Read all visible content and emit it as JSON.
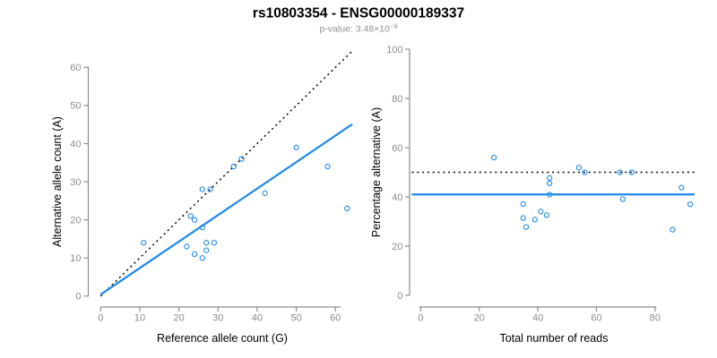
{
  "header": {
    "title": "rs10803354 - ENSG00000189337",
    "subtitle_base": "p-value: 3.48×10",
    "subtitle_exponent": "−9"
  },
  "colors": {
    "background": "#ffffff",
    "accent_blue": "#1e88e8",
    "dotted_line_black": "#000000",
    "axis_gray": "#8c8c8c",
    "tick_label_gray": "#8c8c8c",
    "axis_title_black": "#000000",
    "title_black": "#000000",
    "subtitle_gray": "#8f8f8f"
  },
  "chart_data": [
    {
      "type": "scatter",
      "name": "allele-count-scatter",
      "xlabel": "Reference allele count (G)",
      "ylabel": "Alternative allele count (A)",
      "xticks": [
        0,
        10,
        20,
        30,
        40,
        50,
        60
      ],
      "yticks": [
        0,
        10,
        20,
        30,
        40,
        50,
        60
      ],
      "xlim": [
        0,
        65
      ],
      "ylim": [
        0,
        65
      ],
      "grid": false,
      "legend": null,
      "marker": "open-circle",
      "points": [
        [
          11,
          14
        ],
        [
          22,
          13
        ],
        [
          24,
          11
        ],
        [
          26,
          10
        ],
        [
          27,
          12
        ],
        [
          27,
          14
        ],
        [
          29,
          14
        ],
        [
          23,
          21
        ],
        [
          24,
          20
        ],
        [
          26,
          18
        ],
        [
          26,
          28
        ],
        [
          28,
          28
        ],
        [
          34,
          34
        ],
        [
          36,
          36
        ],
        [
          42,
          27
        ],
        [
          50,
          39
        ],
        [
          58,
          34
        ],
        [
          63,
          23
        ]
      ],
      "lines": [
        {
          "name": "identity-line",
          "style": "dotted",
          "color": "#000000",
          "slope": 1,
          "intercept": 0
        },
        {
          "name": "regression-line",
          "style": "solid",
          "color": "#1e88e8",
          "slope": 0.695,
          "intercept": 0.4
        }
      ]
    },
    {
      "type": "scatter",
      "name": "percentage-vs-reads-scatter",
      "xlabel": "Total number of reads",
      "ylabel": "Percentage alternative (A)",
      "xticks": [
        0,
        20,
        40,
        60,
        80
      ],
      "yticks": [
        0,
        20,
        40,
        60,
        80,
        100
      ],
      "xlim": [
        0,
        95
      ],
      "ylim": [
        0,
        100
      ],
      "grid": false,
      "legend": null,
      "marker": "open-circle",
      "points": [
        [
          25,
          56
        ],
        [
          35,
          37.1
        ],
        [
          35,
          31.4
        ],
        [
          36,
          27.8
        ],
        [
          39,
          30.8
        ],
        [
          41,
          34.1
        ],
        [
          43,
          32.6
        ],
        [
          44,
          47.7
        ],
        [
          44,
          45.5
        ],
        [
          44,
          40.9
        ],
        [
          54,
          51.9
        ],
        [
          56,
          50
        ],
        [
          68,
          50
        ],
        [
          72,
          50
        ],
        [
          69,
          39.1
        ],
        [
          86,
          26.7
        ],
        [
          89,
          43.8
        ],
        [
          92,
          37
        ]
      ],
      "lines": [
        {
          "name": "expected-percentage-line",
          "style": "dotted",
          "color": "#000000",
          "y": 50
        },
        {
          "name": "fitted-percentage-line",
          "style": "solid",
          "color": "#1e88e8",
          "y": 41
        }
      ]
    }
  ]
}
